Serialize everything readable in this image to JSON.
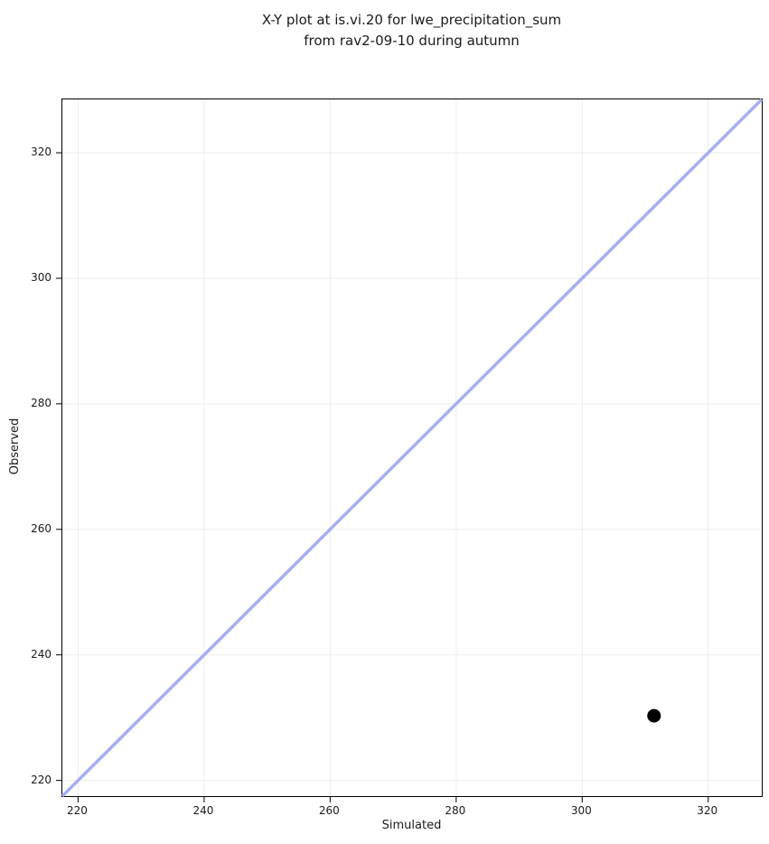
{
  "chart_data": {
    "type": "scatter",
    "title": "X-Y plot at is.vi.20 for lwe_precipitation_sum\nfrom rav2-09-10 during autumn",
    "title_lines": [
      "X-Y plot at is.vi.20 for lwe_precipitation_sum",
      "from rav2-09-10 during autumn"
    ],
    "xlabel": "Simulated",
    "ylabel": "Observed",
    "xlim": [
      217.5,
      328.5
    ],
    "ylim": [
      217.5,
      328.5
    ],
    "xticks": [
      220,
      240,
      260,
      280,
      300,
      320
    ],
    "yticks": [
      220,
      240,
      260,
      280,
      300,
      320
    ],
    "grid": true,
    "legend": "none",
    "series": [
      {
        "name": "observed-vs-simulated-points",
        "marker": "circle",
        "color": "#000000",
        "marker_radius": 7.5,
        "points": [
          {
            "x": 311.4,
            "y": 230.3
          }
        ]
      }
    ],
    "reference_line": {
      "type": "identity",
      "x_from": 217.5,
      "y_from": 217.5,
      "x_to": 328.5,
      "y_to": 328.5,
      "color": "#a8acf2",
      "width": 3.5
    },
    "colors": {
      "background": "#ffffff",
      "grid": "#ededed",
      "spine": "#000000",
      "tick": "#000000",
      "text": "#1a1a1a"
    }
  }
}
